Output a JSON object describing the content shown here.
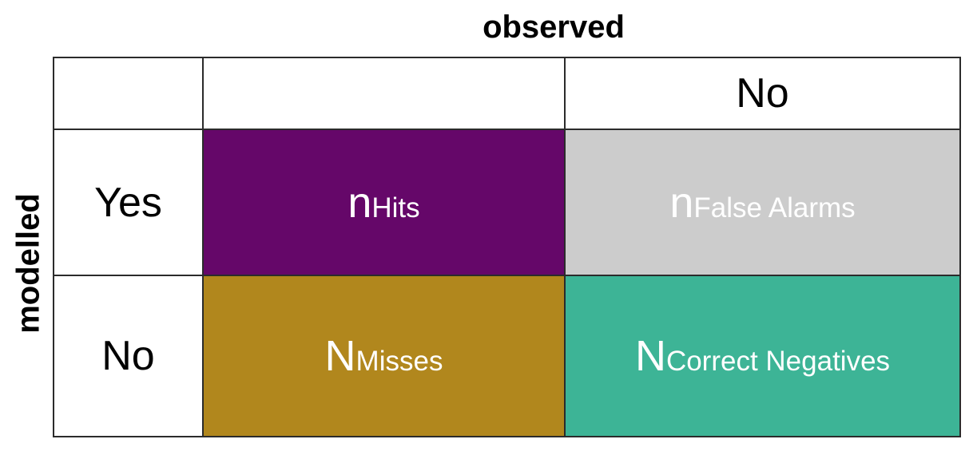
{
  "titles": {
    "top": "observed",
    "left": "modelled"
  },
  "colors": {
    "hits_bg": "#650769",
    "false_alarms_bg": "#cccccc",
    "misses_bg": "#b1871d",
    "correct_negatives_bg": "#3db496",
    "cell_text": "#ffffff",
    "label_text": "#000000",
    "border": "#2b2b2b",
    "background": "#ffffff"
  },
  "matrix": {
    "column_headers": [
      "",
      "",
      "No"
    ],
    "rows": [
      {
        "label": "Yes",
        "cells": [
          {
            "main": "n",
            "sub": "Hits"
          },
          {
            "main": "n",
            "sub": "False Alarms"
          }
        ]
      },
      {
        "label": "No",
        "cells": [
          {
            "main": "N",
            "sub": "Misses"
          },
          {
            "main": "N",
            "sub": "Correct Negatives"
          }
        ]
      }
    ]
  }
}
